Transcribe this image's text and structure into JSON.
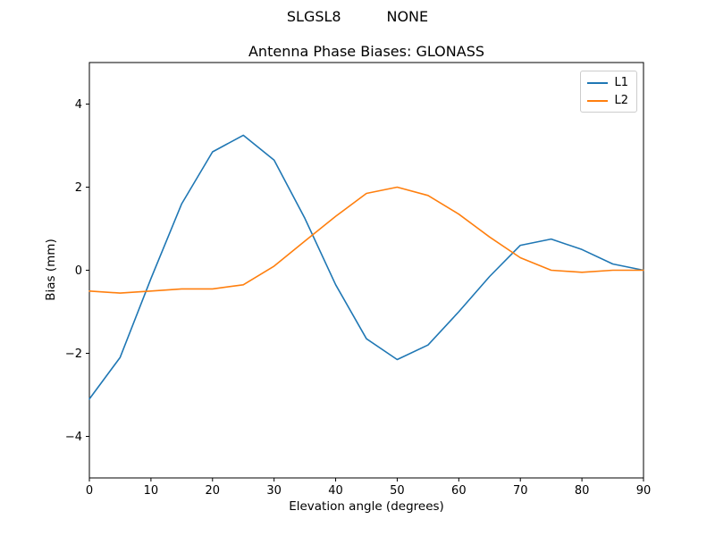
{
  "suptitle": "SLGSL8          NONE",
  "chart_data": {
    "type": "line",
    "title": "Antenna Phase Biases: GLONASS",
    "xlabel": "Elevation angle (degrees)",
    "ylabel": "Bias (mm)",
    "xlim": [
      0,
      90
    ],
    "ylim": [
      -5,
      5
    ],
    "xticks": [
      0,
      10,
      20,
      30,
      40,
      50,
      60,
      70,
      80,
      90
    ],
    "yticks": [
      -4,
      -2,
      0,
      2,
      4
    ],
    "grid": false,
    "legend_position": "upper right",
    "x": [
      0,
      5,
      10,
      15,
      20,
      25,
      30,
      35,
      40,
      45,
      50,
      55,
      60,
      65,
      70,
      75,
      80,
      85,
      90
    ],
    "series": [
      {
        "name": "L1",
        "color": "#1f77b4",
        "values": [
          -3.1,
          -2.1,
          -0.2,
          1.6,
          2.85,
          3.25,
          2.65,
          1.25,
          -0.35,
          -1.65,
          -2.15,
          -1.8,
          -1.0,
          -0.15,
          0.6,
          0.75,
          0.5,
          0.15,
          0.0
        ]
      },
      {
        "name": "L2",
        "color": "#ff7f0e",
        "values": [
          -0.5,
          -0.55,
          -0.5,
          -0.45,
          -0.45,
          -0.35,
          0.1,
          0.7,
          1.3,
          1.85,
          2.0,
          1.8,
          1.35,
          0.8,
          0.3,
          0.0,
          -0.05,
          0.0,
          0.0
        ]
      }
    ]
  }
}
